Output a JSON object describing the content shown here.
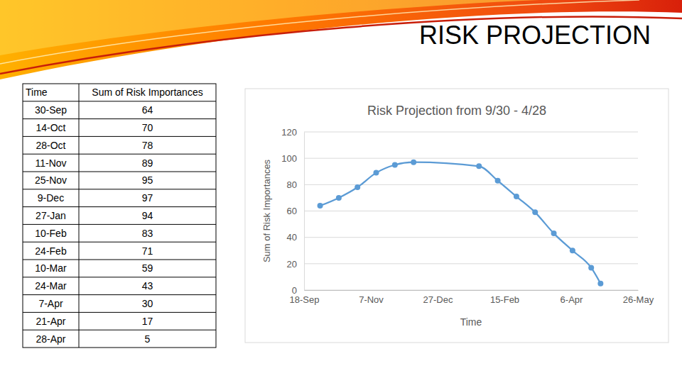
{
  "title": "RISK PROJECTION",
  "table": {
    "columns": [
      "Time",
      "Sum of Risk Importances"
    ]
  },
  "chart_data": {
    "type": "line",
    "title": "Risk Projection from 9/30 - 4/28",
    "x_label": "Time",
    "y_label": "Sum of Risk Importances",
    "x": [
      "30-Sep",
      "14-Oct",
      "28-Oct",
      "11-Nov",
      "25-Nov",
      "9-Dec",
      "27-Jan",
      "10-Feb",
      "24-Feb",
      "10-Mar",
      "24-Mar",
      "7-Apr",
      "21-Apr",
      "28-Apr"
    ],
    "values": [
      64,
      70,
      78,
      89,
      95,
      97,
      94,
      83,
      71,
      59,
      43,
      30,
      17,
      5
    ],
    "color": "#5b9bd5",
    "marker": "circle",
    "line_style": "smooth",
    "xlim": [
      "18-Sep",
      "26-May"
    ],
    "xticks": [
      "18-Sep",
      "7-Nov",
      "27-Dec",
      "15-Feb",
      "6-Apr",
      "26-May"
    ],
    "ylim": [
      0,
      120
    ],
    "yticks": [
      0,
      20,
      40,
      60,
      80,
      100,
      120
    ],
    "grid": true
  }
}
